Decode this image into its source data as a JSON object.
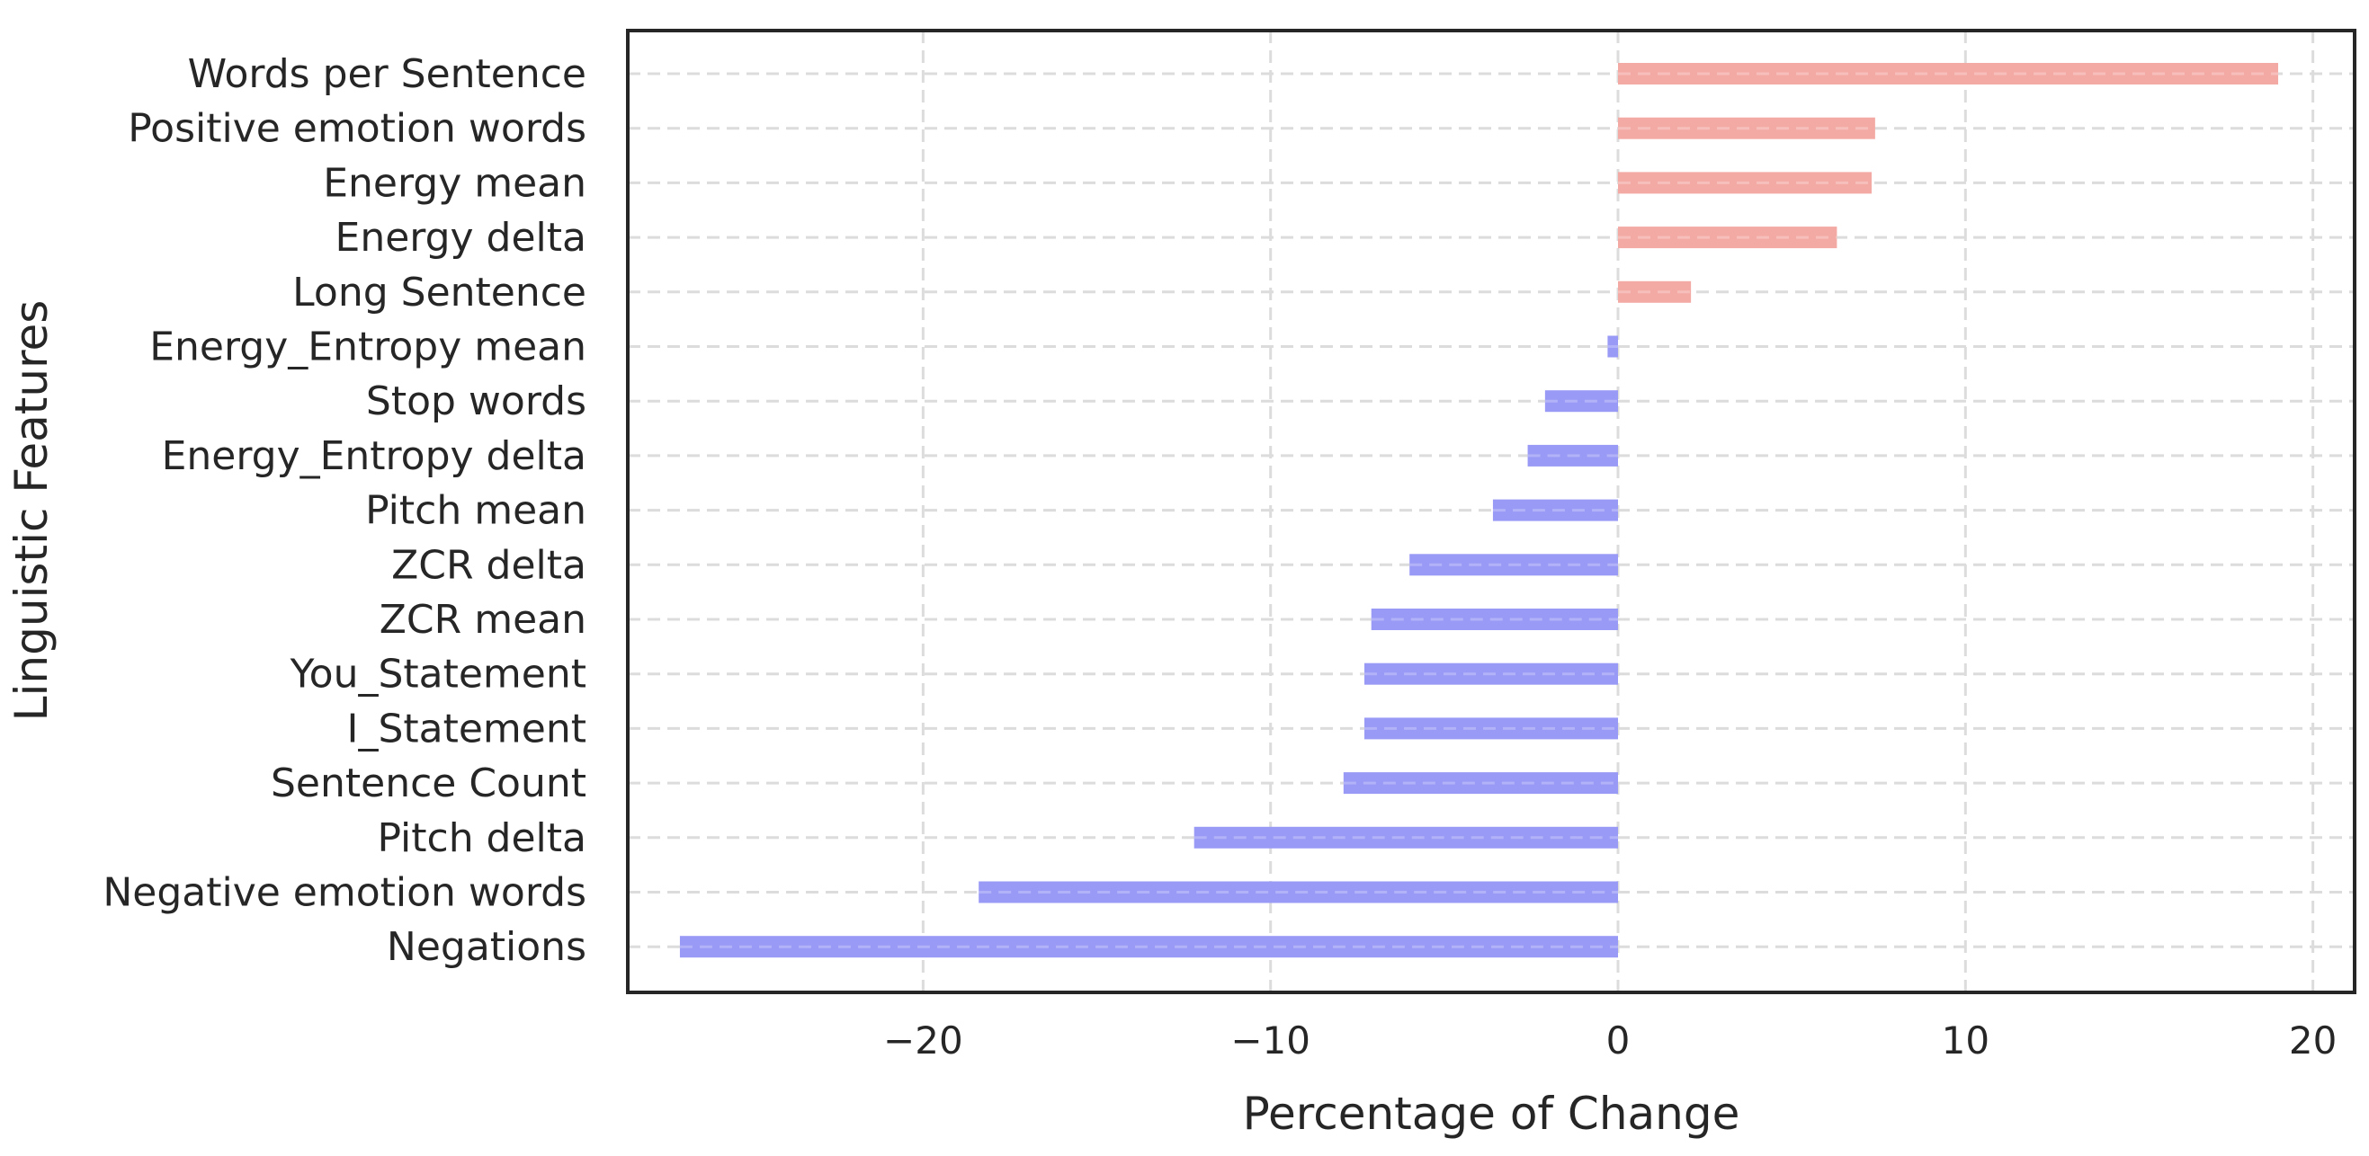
{
  "chart_data": {
    "type": "bar",
    "orientation": "horizontal",
    "title": "",
    "xlabel": "Percentage of Change",
    "ylabel": "Linguistic Features",
    "xlim": [
      -28.5,
      21.2
    ],
    "xticks": [
      -20,
      -10,
      0,
      10,
      20
    ],
    "xtick_labels": [
      "−20",
      "−10",
      "0",
      "10",
      "20"
    ],
    "grid": true,
    "legend": "none",
    "colors": {
      "positive": "#f4aaa4",
      "negative": "#9999f6",
      "grid": "#dcdcdc",
      "axes": "#262626"
    },
    "categories": [
      "Words per Sentence",
      "Positive emotion words",
      "Energy mean",
      "Energy delta",
      "Long Sentence",
      "Energy_Entropy mean",
      "Stop words",
      "Energy_Entropy delta",
      "Pitch mean",
      "ZCR delta",
      "ZCR mean",
      "You_Statement",
      "I_Statement",
      "Sentence Count",
      "Pitch delta",
      "Negative emotion words",
      "Negations"
    ],
    "values": [
      19.0,
      7.4,
      7.3,
      6.3,
      2.1,
      -0.3,
      -2.1,
      -2.6,
      -3.6,
      -6.0,
      -7.1,
      -7.3,
      -7.3,
      -7.9,
      -12.2,
      -18.4,
      -27.0
    ]
  }
}
